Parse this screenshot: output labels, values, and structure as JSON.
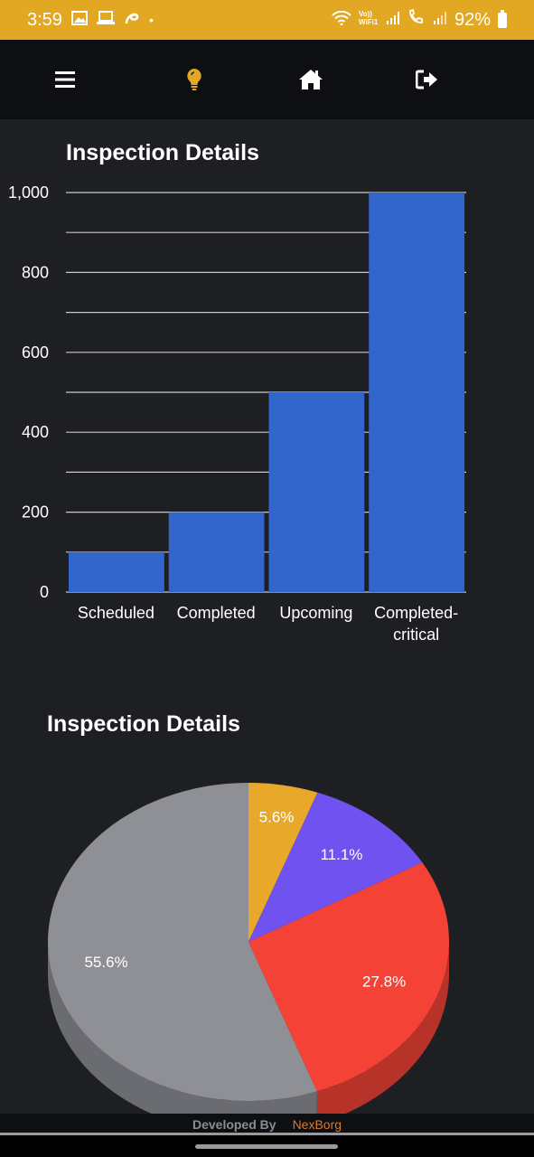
{
  "status_bar": {
    "time": "3:59",
    "dot": "•",
    "battery_text": "92%",
    "icons": [
      "gallery-icon",
      "laptop-icon",
      "airtel-icon",
      "wifi-icon",
      "volte-icon",
      "signal-icon",
      "call-icon",
      "signal-icon-2",
      "battery-icon"
    ]
  },
  "nav": {
    "items": [
      "menu-icon",
      "lightbulb-icon",
      "home-icon",
      "logout-icon"
    ],
    "accent": "#e2a823"
  },
  "bar_chart": {
    "title": "Inspection Details",
    "chart_data": {
      "type": "bar",
      "categories": [
        "Scheduled",
        "Completed",
        "Upcoming",
        "Completed-critical"
      ],
      "category_lines": [
        [
          "Scheduled"
        ],
        [
          "Completed"
        ],
        [
          "Upcoming"
        ],
        [
          "Completed-",
          "critical"
        ]
      ],
      "values": [
        100,
        200,
        500,
        1000
      ],
      "ylim": [
        0,
        1000
      ],
      "yticks": [
        "0",
        "200",
        "400",
        "600",
        "800",
        "1,000"
      ],
      "ytick_values": [
        0,
        200,
        400,
        600,
        800,
        1000
      ],
      "grid": true,
      "color": "#3366cc"
    }
  },
  "pie_chart": {
    "title": "Inspection Details",
    "chart_data": {
      "type": "pie",
      "values": [
        5.6,
        11.1,
        27.8,
        55.6
      ],
      "labels": [
        "5.6%",
        "11.1%",
        "27.8%",
        "55.6%"
      ],
      "colors": [
        "#e8a92a",
        "#7052f0",
        "#f44336",
        "#8f9096"
      ],
      "style": "3d"
    }
  },
  "footer": {
    "developed_by": "Developed By",
    "company": "NexBorg"
  }
}
